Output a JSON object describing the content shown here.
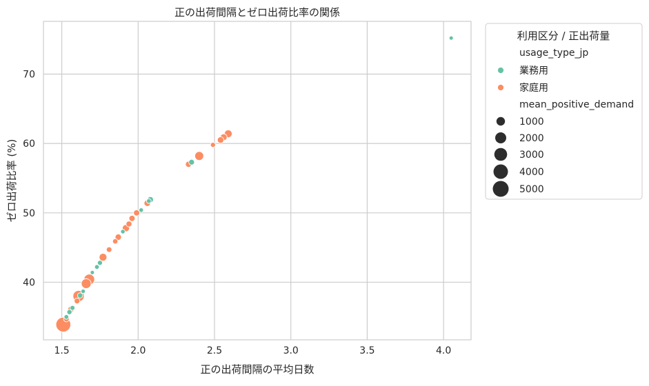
{
  "chart_data": {
    "type": "scatter",
    "title": "正の出荷間隔とゼロ出荷比率の関係",
    "xlabel": "正の出荷間隔の平均日数",
    "ylabel": "ゼロ出荷比率 (%)",
    "xlim": [
      1.38,
      4.18
    ],
    "ylim": [
      31.7,
      77.6
    ],
    "xticks": [
      1.5,
      2.0,
      2.5,
      3.0,
      3.5,
      4.0
    ],
    "yticks": [
      40,
      50,
      60,
      70
    ],
    "xtick_labels": [
      "1.5",
      "2.0",
      "2.5",
      "3.0",
      "3.5",
      "4.0"
    ],
    "ytick_labels": [
      "40",
      "50",
      "60",
      "70"
    ],
    "grid": true,
    "legend_position": "outside-right",
    "legend": {
      "title": "利用区分 / 正出荷量",
      "hue_title": "usage_type_jp",
      "hue_entries": [
        {
          "label": "業務用",
          "color": "#66c2a5"
        },
        {
          "label": "家庭用",
          "color": "#fc8d62"
        }
      ],
      "size_title": "mean_positive_demand",
      "size_entries": [
        {
          "label": "1000",
          "value": 1000
        },
        {
          "label": "2000",
          "value": 2000
        },
        {
          "label": "3000",
          "value": 3000
        },
        {
          "label": "4000",
          "value": 4000
        },
        {
          "label": "5000",
          "value": 5000
        }
      ]
    },
    "series": [
      {
        "name": "業務用",
        "color": "#66c2a5",
        "points": [
          {
            "x": 4.05,
            "y": 75.2,
            "size": 300
          },
          {
            "x": 2.35,
            "y": 57.3,
            "size": 600
          },
          {
            "x": 2.08,
            "y": 51.9,
            "size": 700
          },
          {
            "x": 2.07,
            "y": 51.7,
            "size": 400
          },
          {
            "x": 2.02,
            "y": 50.4,
            "size": 350
          },
          {
            "x": 1.9,
            "y": 47.3,
            "size": 350
          },
          {
            "x": 1.75,
            "y": 42.8,
            "size": 450
          },
          {
            "x": 1.73,
            "y": 42.2,
            "size": 380
          },
          {
            "x": 1.7,
            "y": 41.4,
            "size": 300
          },
          {
            "x": 1.64,
            "y": 38.7,
            "size": 330
          },
          {
            "x": 1.62,
            "y": 38.1,
            "size": 500
          },
          {
            "x": 1.57,
            "y": 36.3,
            "size": 420
          },
          {
            "x": 1.55,
            "y": 35.7,
            "size": 460
          },
          {
            "x": 1.53,
            "y": 35.0,
            "size": 380
          }
        ]
      },
      {
        "name": "家庭用",
        "color": "#fc8d62",
        "points": [
          {
            "x": 2.59,
            "y": 61.4,
            "size": 1200
          },
          {
            "x": 2.56,
            "y": 60.9,
            "size": 900
          },
          {
            "x": 2.54,
            "y": 60.5,
            "size": 800
          },
          {
            "x": 2.49,
            "y": 59.8,
            "size": 450
          },
          {
            "x": 2.4,
            "y": 58.2,
            "size": 1600
          },
          {
            "x": 2.33,
            "y": 57.0,
            "size": 700
          },
          {
            "x": 2.06,
            "y": 51.4,
            "size": 800
          },
          {
            "x": 1.99,
            "y": 50.0,
            "size": 700
          },
          {
            "x": 1.96,
            "y": 49.2,
            "size": 700
          },
          {
            "x": 1.94,
            "y": 48.4,
            "size": 650
          },
          {
            "x": 1.92,
            "y": 47.8,
            "size": 1000
          },
          {
            "x": 1.87,
            "y": 46.5,
            "size": 750
          },
          {
            "x": 1.85,
            "y": 45.9,
            "size": 500
          },
          {
            "x": 1.81,
            "y": 44.7,
            "size": 550
          },
          {
            "x": 1.77,
            "y": 43.6,
            "size": 1200
          },
          {
            "x": 1.68,
            "y": 40.4,
            "size": 2400
          },
          {
            "x": 1.66,
            "y": 39.8,
            "size": 2000
          },
          {
            "x": 1.61,
            "y": 38.0,
            "size": 2700
          },
          {
            "x": 1.6,
            "y": 37.3,
            "size": 600
          },
          {
            "x": 1.56,
            "y": 36.1,
            "size": 700
          },
          {
            "x": 1.53,
            "y": 34.7,
            "size": 600
          },
          {
            "x": 1.51,
            "y": 33.9,
            "size": 5000
          }
        ]
      }
    ]
  }
}
